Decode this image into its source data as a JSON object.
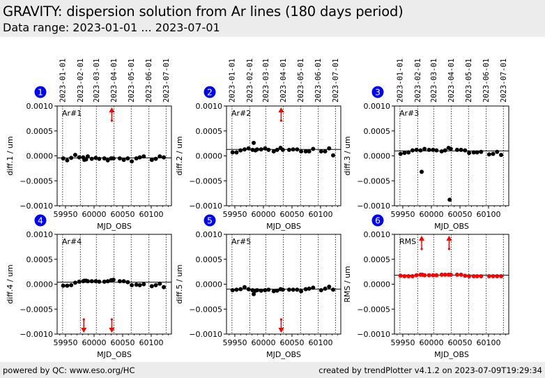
{
  "header": {
    "title": "GRAVITY: dispersion solution from Ar lines (180 days period)",
    "subtitle": "Data range: 2023-01-01 ... 2023-07-01"
  },
  "footer": {
    "left": "powered by QC: www.eso.org/HC",
    "right": "created by trendPlotter v4.1.2 on 2023-07-09T19:29:34"
  },
  "colors": {
    "badge": "#0000ff",
    "points_default": "#000000",
    "points_rms": "#ff0000",
    "outlier_arrow": "#ff0000",
    "header_bg": "#ececec"
  },
  "chart_data": [
    {
      "type": "scatter",
      "badge": "1",
      "label": "Ar#1",
      "ylabel": "diff.1 / um",
      "xlabel": "MJD_OBS",
      "xlim": [
        59935.4,
        60135.4
      ],
      "ylim": [
        -0.001,
        0.001
      ],
      "xticks": [
        59950,
        60000,
        60050,
        60100
      ],
      "yticks": [
        "0.0010",
        "0.0005",
        "0.0000",
        "−0.0005",
        "−0.0010"
      ],
      "date_ticks": [
        "2023-01-01",
        "2023-02-01",
        "2023-03-01",
        "2023-04-01",
        "2023-05-01",
        "2023-06-01",
        "2023-07-01"
      ],
      "date_mjd": [
        59945,
        59976,
        60004,
        60035,
        60065,
        60096,
        60126
      ],
      "ref_line": -4e-05,
      "point_color": "black",
      "x": [
        59946,
        59953,
        59960,
        59967,
        59974,
        59981,
        59983,
        59986,
        59989,
        59996,
        60003,
        60009,
        60018,
        60024,
        60030,
        60034,
        60045,
        60052,
        60059,
        60066,
        60074,
        60080,
        60087,
        60101,
        60108,
        60115,
        60122
      ],
      "y": [
        -5e-05,
        -9e-05,
        -4e-05,
        2e-05,
        -3e-05,
        -3e-05,
        -8e-05,
        -7e-05,
        -1e-05,
        -6e-05,
        -4e-05,
        -6e-05,
        -5e-05,
        -9e-05,
        -5e-05,
        -5e-05,
        -5e-05,
        -8e-05,
        -5e-05,
        -0.00011,
        -5e-05,
        -3e-05,
        -1e-05,
        -8e-05,
        -6e-05,
        -1e-05,
        -3e-05
      ],
      "outliers": [
        {
          "x": 60031,
          "dir": "up"
        }
      ]
    },
    {
      "type": "scatter",
      "badge": "2",
      "label": "Ar#2",
      "ylabel": "diff.2 / um",
      "xlabel": "MJD_OBS",
      "xlim": [
        59935.4,
        60135.4
      ],
      "ylim": [
        -0.001,
        0.001
      ],
      "xticks": [
        59950,
        60000,
        60050,
        60100
      ],
      "yticks": [
        "0.0010",
        "0.0005",
        "0.0000",
        "−0.0005",
        "−0.0010"
      ],
      "date_ticks": [
        "2023-01-01",
        "2023-02-01",
        "2023-03-01",
        "2023-04-01",
        "2023-05-01",
        "2023-06-01",
        "2023-07-01"
      ],
      "date_mjd": [
        59945,
        59976,
        60004,
        60035,
        60065,
        60096,
        60126
      ],
      "ref_line": 0.00013,
      "point_color": "black",
      "x": [
        59946,
        59953,
        59960,
        59967,
        59974,
        59981,
        59983,
        59986,
        59989,
        59996,
        60003,
        60009,
        60018,
        60024,
        60030,
        60034,
        60045,
        60052,
        60059,
        60066,
        60074,
        60080,
        60087,
        60101,
        60108,
        60115,
        60122
      ],
      "y": [
        7e-05,
        7e-05,
        0.00011,
        0.00013,
        0.00015,
        0.00012,
        0.00026,
        0.00011,
        0.00013,
        0.00013,
        0.00015,
        0.00012,
        9e-05,
        0.00012,
        0.00016,
        0.00012,
        0.00012,
        0.00013,
        0.00013,
        9e-05,
        9e-05,
        9e-05,
        0.00014,
        9e-05,
        9e-05,
        0.00015,
        1e-05
      ],
      "outliers": [
        {
          "x": 60031,
          "dir": "up"
        }
      ]
    },
    {
      "type": "scatter",
      "badge": "3",
      "label": "Ar#3",
      "ylabel": "diff.3 / um",
      "xlabel": "MJD_OBS",
      "xlim": [
        59935.4,
        60135.4
      ],
      "ylim": [
        -0.001,
        0.001
      ],
      "xticks": [
        59950,
        60000,
        60050,
        60100
      ],
      "yticks": [
        "0.0010",
        "0.0005",
        "0.0000",
        "−0.0005",
        "−0.0010"
      ],
      "date_ticks": [
        "2023-01-01",
        "2023-02-01",
        "2023-03-01",
        "2023-04-01",
        "2023-05-01",
        "2023-06-01",
        "2023-07-01"
      ],
      "date_mjd": [
        59945,
        59976,
        60004,
        60035,
        60065,
        60096,
        60126
      ],
      "ref_line": 0.0001,
      "point_color": "black",
      "x": [
        59946,
        59953,
        59960,
        59967,
        59974,
        59981,
        59983,
        59988,
        59996,
        60003,
        60009,
        60018,
        60024,
        60030,
        60032,
        60034,
        60045,
        60052,
        60059,
        60066,
        60074,
        60080,
        60087,
        60101,
        60108,
        60115,
        60122
      ],
      "y": [
        4e-05,
        6e-05,
        7e-05,
        0.00011,
        0.00012,
        0.00011,
        -0.00032,
        0.00014,
        0.00012,
        0.00012,
        0.00011,
        9e-05,
        0.00011,
        0.00016,
        -0.00088,
        0.00014,
        0.00012,
        0.00012,
        0.00011,
        6e-05,
        7e-05,
        7e-05,
        8e-05,
        3e-05,
        4e-05,
        8e-05,
        2e-05
      ],
      "outliers": []
    },
    {
      "type": "scatter",
      "badge": "4",
      "label": "Ar#4",
      "ylabel": "diff.4 / um",
      "xlabel": "MJD_OBS",
      "xlim": [
        59935.4,
        60135.4
      ],
      "ylim": [
        -0.001,
        0.001
      ],
      "xticks": [
        59950,
        60000,
        60050,
        60100
      ],
      "yticks": [
        "0.0010",
        "0.0005",
        "0.0000",
        "−0.0005",
        "−0.0010"
      ],
      "date_ticks": [
        "2023-01-01",
        "2023-02-01",
        "2023-03-01",
        "2023-04-01",
        "2023-05-01",
        "2023-06-01",
        "2023-07-01"
      ],
      "date_mjd": [
        59945,
        59976,
        60004,
        60035,
        60065,
        60096,
        60126
      ],
      "ref_line": 4e-05,
      "point_color": "black",
      "x": [
        59946,
        59953,
        59960,
        59967,
        59974,
        59981,
        59983,
        59986,
        59989,
        59996,
        60003,
        60009,
        60018,
        60024,
        60030,
        60034,
        60045,
        60052,
        60059,
        60066,
        60074,
        60080,
        60087,
        60101,
        60108,
        60115,
        60122
      ],
      "y": [
        -3e-05,
        -3e-05,
        -2e-05,
        3e-05,
        5e-05,
        6e-05,
        7e-05,
        7e-05,
        6e-05,
        6e-05,
        6e-05,
        5e-05,
        5e-05,
        6e-05,
        8e-05,
        9e-05,
        6e-05,
        6e-05,
        4e-05,
        -2e-05,
        -1e-05,
        -2e-05,
        0.0,
        -4e-05,
        -2e-05,
        1e-05,
        -6e-05
      ],
      "outliers": [
        {
          "x": 59982,
          "dir": "down"
        },
        {
          "x": 60031,
          "dir": "down"
        }
      ]
    },
    {
      "type": "scatter",
      "badge": "5",
      "label": "Ar#5",
      "ylabel": "diff.5 / um",
      "xlabel": "MJD_OBS",
      "xlim": [
        59935.4,
        60135.4
      ],
      "ylim": [
        -0.001,
        0.001
      ],
      "xticks": [
        59950,
        60000,
        60050,
        60100
      ],
      "yticks": [
        "0.0010",
        "0.0005",
        "0.0000",
        "−0.0005",
        "−0.0010"
      ],
      "date_ticks": [
        "2023-01-01",
        "2023-02-01",
        "2023-03-01",
        "2023-04-01",
        "2023-05-01",
        "2023-06-01",
        "2023-07-01"
      ],
      "date_mjd": [
        59945,
        59976,
        60004,
        60035,
        60065,
        60096,
        60126
      ],
      "ref_line": -0.0001,
      "point_color": "black",
      "x": [
        59946,
        59953,
        59960,
        59967,
        59974,
        59981,
        59983,
        59986,
        59989,
        59996,
        60003,
        60009,
        60018,
        60024,
        60030,
        60034,
        60045,
        60052,
        60059,
        60066,
        60074,
        60080,
        60087,
        60101,
        60108,
        60115,
        60122
      ],
      "y": [
        -0.00012,
        -0.00011,
        -0.0001,
        -6e-05,
        -0.0001,
        -0.00012,
        -0.0002,
        -0.00013,
        -0.00012,
        -0.00013,
        -0.00012,
        -0.00011,
        -0.00014,
        -0.00013,
        -0.0001,
        -0.00011,
        -0.00011,
        -0.00011,
        -0.00011,
        -0.00014,
        -0.0001,
        -9e-05,
        -7e-05,
        -0.00012,
        -9e-05,
        -5e-05,
        -0.00011
      ],
      "outliers": [
        {
          "x": 60031,
          "dir": "down"
        }
      ]
    },
    {
      "type": "scatter",
      "badge": "6",
      "label": "RMS",
      "ylabel": "RMS / um",
      "xlabel": "MJD_OBS",
      "xlim": [
        59935.4,
        60135.4
      ],
      "ylim": [
        -0.001,
        0.001
      ],
      "xticks": [
        59950,
        60000,
        60050,
        60100
      ],
      "yticks": [
        "0.0010",
        "0.0005",
        "0.0000",
        "−0.0005",
        "−0.0010"
      ],
      "date_ticks": [
        "2023-01-01",
        "2023-02-01",
        "2023-03-01",
        "2023-04-01",
        "2023-05-01",
        "2023-06-01",
        "2023-07-01"
      ],
      "date_mjd": [
        59945,
        59976,
        60004,
        60035,
        60065,
        60096,
        60126
      ],
      "ref_line": 0.00018,
      "point_color": "red",
      "x": [
        59946,
        59953,
        59960,
        59967,
        59974,
        59981,
        59984,
        59988,
        59996,
        60003,
        60009,
        60018,
        60024,
        60030,
        60034,
        60045,
        60052,
        60059,
        60066,
        60074,
        60080,
        60087,
        60101,
        60108,
        60115,
        60122
      ],
      "y": [
        0.00017,
        0.00016,
        0.00016,
        0.00016,
        0.00018,
        0.00019,
        0.00019,
        0.00018,
        0.00018,
        0.00018,
        0.00018,
        0.00019,
        0.00019,
        0.00019,
        0.00019,
        0.00019,
        0.00019,
        0.00017,
        0.00016,
        0.00016,
        0.00016,
        0.00016,
        0.00016,
        0.00016,
        0.00016,
        0.00016
      ],
      "outliers": [
        {
          "x": 59983,
          "dir": "up"
        },
        {
          "x": 60031,
          "dir": "up"
        }
      ]
    }
  ]
}
